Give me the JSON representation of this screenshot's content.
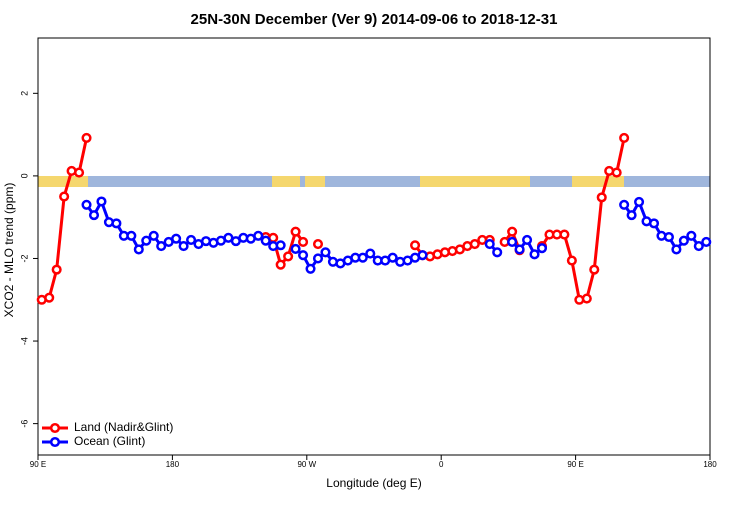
{
  "chart_data": {
    "type": "line",
    "title": "25N-30N December (Ver 9)   2014-09-06 to 2018-12-31",
    "x_label": "Longitude (deg E)",
    "y_label": "XCO2 - MLO trend (ppm)",
    "xlim": [
      90,
      540
    ],
    "ylim": [
      -6.76,
      3.34
    ],
    "xticks": [
      {
        "value": 90,
        "label": "90 E"
      },
      180,
      {
        "value": 270,
        "label": "90 W"
      },
      {
        "value": 360,
        "label": "0"
      },
      {
        "value": 450,
        "label": "90 E"
      },
      {
        "value": 540,
        "label": "180"
      }
    ],
    "yticks": [
      2,
      0,
      -2,
      -4,
      -6
    ],
    "legend": "bottomleft",
    "series": [
      {
        "name": "Land (Nadir&Glint)",
        "color": "#ff0000",
        "x": [
          92.5,
          97.5,
          102.5,
          107.5,
          112.5,
          117.5,
          122.5,
          null,
          242.5,
          247.5,
          252.5,
          257.5,
          262.5,
          267.5,
          null,
          277.5,
          null,
          342.5,
          347.5,
          352.5,
          357.5,
          362.5,
          367.5,
          372.5,
          377.5,
          382.5,
          387.5,
          392.5,
          null,
          402.5,
          407.5,
          412.5,
          null,
          427.5,
          432.5,
          437.5,
          442.5,
          447.5,
          452.5,
          457.5,
          462.5,
          467.5,
          472.5,
          477.5,
          482.5
        ],
        "values": [
          -3.0,
          -2.95,
          -2.27,
          -0.5,
          0.12,
          0.08,
          0.92,
          null,
          -1.48,
          -1.5,
          -2.15,
          -1.95,
          -1.35,
          -1.6,
          null,
          -1.65,
          null,
          -1.68,
          -1.92,
          -1.95,
          -1.9,
          -1.85,
          -1.82,
          -1.78,
          -1.7,
          -1.65,
          -1.55,
          -1.55,
          null,
          -1.6,
          -1.35,
          -1.8,
          null,
          -1.7,
          -1.42,
          -1.42,
          -1.42,
          -2.05,
          -3.0,
          -2.97,
          -2.27,
          -0.52,
          0.12,
          0.08,
          0.92
        ]
      },
      {
        "name": "Ocean (Glint)",
        "color": "#0000ff",
        "x": [
          122.5,
          127.5,
          132.5,
          137.5,
          142.5,
          147.5,
          152.5,
          157.5,
          162.5,
          167.5,
          172.5,
          177.5,
          182.5,
          187.5,
          192.5,
          197.5,
          202.5,
          207.5,
          212.5,
          217.5,
          222.5,
          227.5,
          232.5,
          237.5,
          242.5,
          247.5,
          252.5,
          null,
          262.5,
          267.5,
          272.5,
          277.5,
          282.5,
          287.5,
          292.5,
          297.5,
          302.5,
          307.5,
          312.5,
          317.5,
          322.5,
          327.5,
          332.5,
          337.5,
          342.5,
          347.5,
          null,
          392.5,
          397.5,
          null,
          407.5,
          412.5,
          417.5,
          422.5,
          427.5,
          null,
          482.5,
          487.5,
          492.5,
          497.5,
          502.5,
          507.5,
          512.5,
          517.5,
          522.5,
          527.5,
          532.5,
          537.5
        ],
        "values": [
          -0.7,
          -0.95,
          -0.62,
          -1.12,
          -1.15,
          -1.45,
          -1.45,
          -1.78,
          -1.57,
          -1.45,
          -1.7,
          -1.6,
          -1.52,
          -1.7,
          -1.55,
          -1.65,
          -1.58,
          -1.62,
          -1.57,
          -1.5,
          -1.58,
          -1.5,
          -1.52,
          -1.45,
          -1.57,
          -1.7,
          -1.68,
          null,
          -1.77,
          -1.92,
          -2.25,
          -2.0,
          -1.85,
          -2.08,
          -2.12,
          -2.05,
          -1.98,
          -1.98,
          -1.88,
          -2.05,
          -2.05,
          -1.98,
          -2.08,
          -2.05,
          -1.98,
          -1.92,
          null,
          -1.65,
          -1.85,
          null,
          -1.6,
          -1.78,
          -1.55,
          -1.9,
          -1.75,
          null,
          -0.7,
          -0.95,
          -0.63,
          -1.1,
          -1.15,
          -1.45,
          -1.48,
          -1.78,
          -1.57,
          -1.45,
          -1.7,
          -1.6
        ]
      }
    ]
  }
}
